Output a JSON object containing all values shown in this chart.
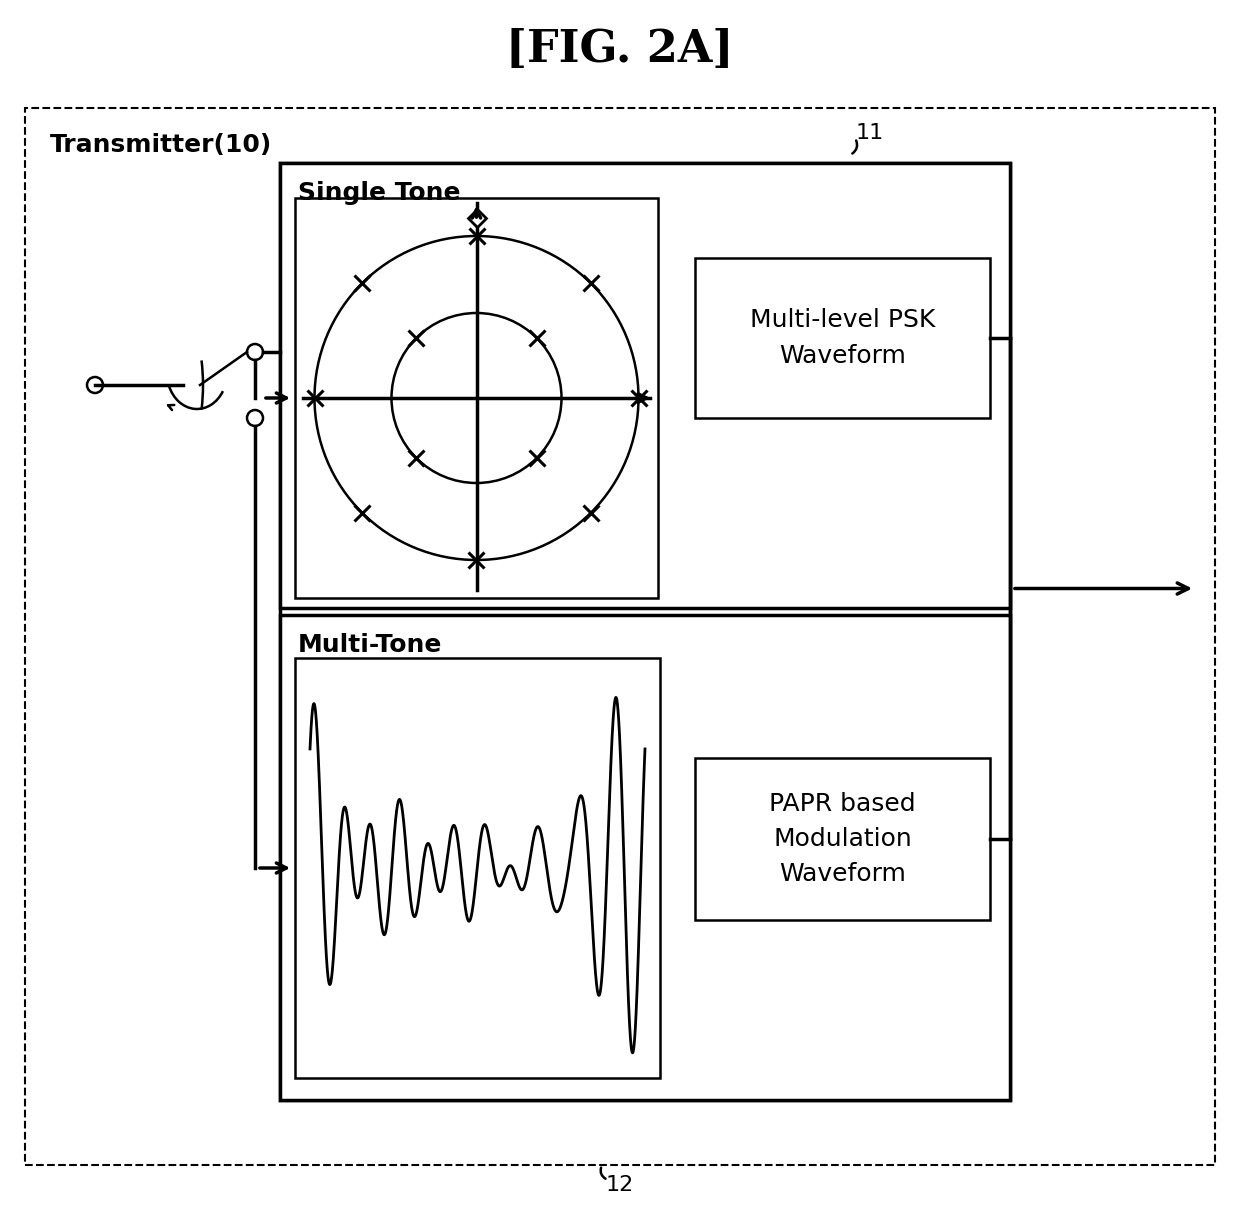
{
  "title": "[FIG. 2A]",
  "title_fontsize": 32,
  "bg_color": "#ffffff",
  "transmitter_label": "Transmitter(10)",
  "label_11": "11",
  "label_12": "12",
  "single_tone_label": "Single Tone",
  "multi_tone_label": "Multi-Tone",
  "psk_label": "Multi-level PSK\nWaveform",
  "papr_label": "PAPR based\nModulation\nWaveform",
  "text_fontsize": 18,
  "small_fontsize": 16,
  "lw_main": 2.5,
  "lw_thin": 1.8,
  "lw_dashed": 1.5
}
